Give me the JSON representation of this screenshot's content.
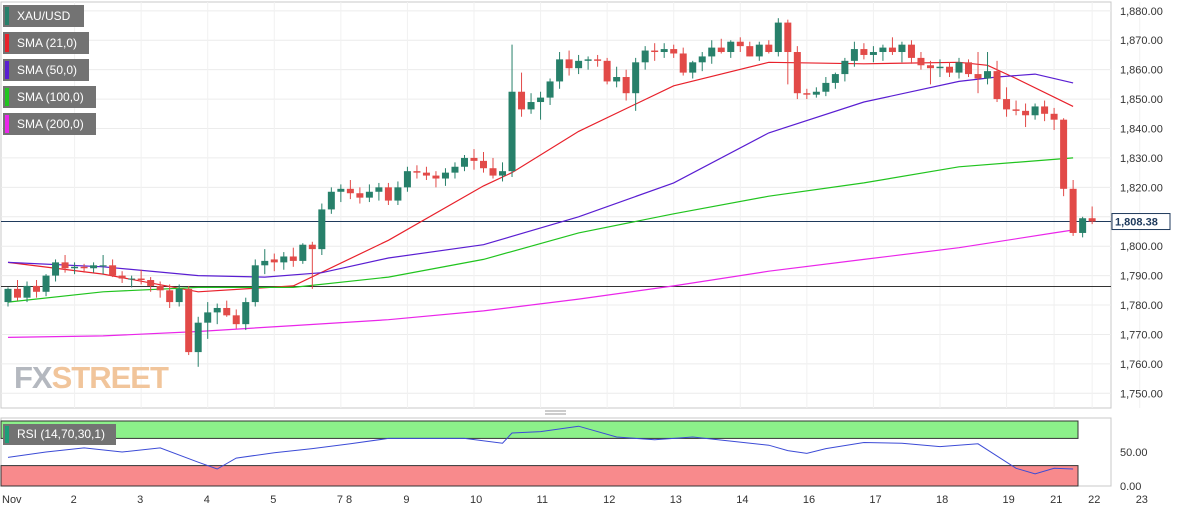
{
  "legend": [
    {
      "label": "XAU/USD",
      "color": "#26806a"
    },
    {
      "label": "SMA (21,0)",
      "color": "#e8212b"
    },
    {
      "label": "SMA (50,0)",
      "color": "#5a1ed2"
    },
    {
      "label": "SMA (100,0)",
      "color": "#21c41f"
    },
    {
      "label": "SMA (200,0)",
      "color": "#ea26ea"
    }
  ],
  "watermark": {
    "fx": "FX",
    "street": "STREET"
  },
  "rsi_label": "RSI (14,70,30,1)",
  "colors": {
    "up": "#27806a",
    "down": "#e24a48",
    "rsi_line": "#3c4bd6",
    "overbought": "#8cf08a",
    "oversold": "#f88a8c"
  },
  "chart_data": {
    "type": "candlestick",
    "symbol": "XAU/USD",
    "x_labels": [
      "Nov",
      "2",
      "3",
      "4",
      "5",
      "7 8",
      "9",
      "10",
      "11",
      "12",
      "13",
      "14",
      "16",
      "17",
      "18",
      "19",
      "21",
      "22",
      "23"
    ],
    "y_range": [
      1745,
      1883
    ],
    "y_ticks": [
      "1,750.00",
      "1,760.00",
      "1,770.00",
      "1,780.00",
      "1,790.00",
      "1,800.00",
      "1,810.00",
      "1,820.00",
      "1,830.00",
      "1,840.00",
      "1,850.00",
      "1,860.00",
      "1,870.00",
      "1,880.00"
    ],
    "last_price": 1808.38,
    "last_price_label": "1,808.38",
    "horizontal_line": 1786.3,
    "candles": [
      [
        1781.0,
        1786.0,
        1779.5,
        1785.5
      ],
      [
        1785.5,
        1788.5,
        1781.5,
        1782.5
      ],
      [
        1782.5,
        1788.0,
        1781.0,
        1786.5
      ],
      [
        1786.5,
        1788.5,
        1782.5,
        1784.5
      ],
      [
        1784.5,
        1790.5,
        1783.0,
        1790.0
      ],
      [
        1790.0,
        1795.5,
        1788.0,
        1794.5
      ],
      [
        1794.5,
        1797.0,
        1791.0,
        1792.5
      ],
      [
        1792.5,
        1794.5,
        1790.5,
        1793.0
      ],
      [
        1793.0,
        1794.0,
        1791.0,
        1792.5
      ],
      [
        1792.5,
        1794.5,
        1791.0,
        1793.5
      ],
      [
        1793.5,
        1797.0,
        1790.5,
        1793.5
      ],
      [
        1793.5,
        1795.5,
        1789.5,
        1790.0
      ],
      [
        1790.0,
        1791.5,
        1787.5,
        1789.0
      ],
      [
        1789.0,
        1790.0,
        1786.0,
        1789.0
      ],
      [
        1789.0,
        1792.0,
        1787.0,
        1788.5
      ],
      [
        1788.5,
        1789.5,
        1784.5,
        1786.5
      ],
      [
        1786.5,
        1788.0,
        1782.5,
        1785.0
      ],
      [
        1785.0,
        1787.0,
        1779.0,
        1781.0
      ],
      [
        1781.0,
        1787.0,
        1779.5,
        1785.5
      ],
      [
        1785.5,
        1786.5,
        1763.0,
        1764.0
      ],
      [
        1764.0,
        1776.0,
        1759.0,
        1774.0
      ],
      [
        1774.0,
        1781.0,
        1768.5,
        1777.5
      ],
      [
        1777.5,
        1780.5,
        1773.5,
        1779.0
      ],
      [
        1779.0,
        1781.5,
        1776.0,
        1776.5
      ],
      [
        1776.5,
        1778.5,
        1772.0,
        1773.5
      ],
      [
        1773.5,
        1782.5,
        1771.5,
        1781.0
      ],
      [
        1781.0,
        1795.5,
        1779.5,
        1793.5
      ],
      [
        1793.5,
        1799.0,
        1790.5,
        1795.0
      ],
      [
        1795.5,
        1797.5,
        1791.5,
        1794.5
      ],
      [
        1794.5,
        1798.0,
        1792.0,
        1796.5
      ],
      [
        1796.5,
        1799.5,
        1793.0,
        1795.0
      ],
      [
        1795.0,
        1801.0,
        1794.0,
        1800.5
      ],
      [
        1800.5,
        1801.5,
        1785.5,
        1799.0
      ],
      [
        1799.0,
        1814.5,
        1797.0,
        1812.5
      ],
      [
        1812.5,
        1820.0,
        1811.0,
        1818.5
      ],
      [
        1818.5,
        1821.0,
        1815.0,
        1819.5
      ],
      [
        1819.5,
        1822.5,
        1816.0,
        1818.0
      ],
      [
        1818.0,
        1820.0,
        1814.5,
        1816.5
      ],
      [
        1816.5,
        1821.0,
        1815.0,
        1818.5
      ],
      [
        1818.5,
        1821.5,
        1815.5,
        1820.0
      ],
      [
        1820.0,
        1821.5,
        1814.0,
        1815.5
      ],
      [
        1815.5,
        1822.0,
        1814.0,
        1820.0
      ],
      [
        1820.0,
        1827.0,
        1818.5,
        1825.5
      ],
      [
        1825.5,
        1827.5,
        1823.0,
        1825.0
      ],
      [
        1825.0,
        1827.0,
        1822.5,
        1824.0
      ],
      [
        1824.0,
        1825.5,
        1820.0,
        1823.0
      ],
      [
        1823.0,
        1826.5,
        1820.5,
        1825.0
      ],
      [
        1825.0,
        1828.5,
        1823.0,
        1827.0
      ],
      [
        1827.0,
        1831.0,
        1825.5,
        1830.0
      ],
      [
        1830.0,
        1833.0,
        1826.0,
        1829.0
      ],
      [
        1829.0,
        1832.0,
        1825.0,
        1826.5
      ],
      [
        1826.5,
        1830.0,
        1823.0,
        1824.0
      ],
      [
        1824.0,
        1828.5,
        1822.0,
        1825.5
      ],
      [
        1825.5,
        1868.5,
        1823.5,
        1852.5
      ],
      [
        1852.5,
        1859.0,
        1844.0,
        1846.5
      ],
      [
        1846.5,
        1852.0,
        1845.0,
        1849.0
      ],
      [
        1849.0,
        1852.5,
        1843.0,
        1850.5
      ],
      [
        1850.5,
        1857.0,
        1848.0,
        1856.0
      ],
      [
        1856.0,
        1866.0,
        1853.5,
        1863.5
      ],
      [
        1863.5,
        1866.5,
        1858.0,
        1860.5
      ],
      [
        1860.5,
        1865.0,
        1858.5,
        1863.0
      ],
      [
        1863.0,
        1864.5,
        1860.0,
        1863.5
      ],
      [
        1863.5,
        1865.0,
        1861.0,
        1863.0
      ],
      [
        1863.0,
        1864.0,
        1855.0,
        1856.0
      ],
      [
        1856.0,
        1861.0,
        1854.0,
        1857.5
      ],
      [
        1857.5,
        1860.0,
        1849.5,
        1852.0
      ],
      [
        1852.0,
        1864.0,
        1846.0,
        1862.5
      ],
      [
        1862.5,
        1868.0,
        1860.0,
        1866.5
      ],
      [
        1866.5,
        1869.0,
        1863.0,
        1866.0
      ],
      [
        1866.0,
        1869.0,
        1864.0,
        1867.0
      ],
      [
        1867.0,
        1868.5,
        1864.0,
        1865.5
      ],
      [
        1865.5,
        1867.5,
        1858.0,
        1859.0
      ],
      [
        1859.0,
        1863.0,
        1857.0,
        1862.5
      ],
      [
        1862.5,
        1866.0,
        1859.5,
        1864.5
      ],
      [
        1864.5,
        1870.0,
        1862.0,
        1867.5
      ],
      [
        1867.5,
        1870.5,
        1865.5,
        1866.0
      ],
      [
        1866.0,
        1870.0,
        1864.0,
        1869.5
      ],
      [
        1869.5,
        1871.0,
        1866.0,
        1868.0
      ],
      [
        1868.0,
        1869.5,
        1864.5,
        1864.5
      ],
      [
        1864.5,
        1869.5,
        1863.0,
        1868.5
      ],
      [
        1868.5,
        1870.0,
        1865.5,
        1866.0
      ],
      [
        1866.0,
        1877.5,
        1864.5,
        1876.0
      ],
      [
        1876.0,
        1877.0,
        1855.0,
        1866.0
      ],
      [
        1866.0,
        1868.0,
        1850.0,
        1852.0
      ],
      [
        1852.0,
        1853.5,
        1850.0,
        1851.5
      ],
      [
        1851.5,
        1854.0,
        1850.5,
        1852.5
      ],
      [
        1852.5,
        1857.5,
        1851.0,
        1855.5
      ],
      [
        1855.5,
        1859.0,
        1853.5,
        1858.5
      ],
      [
        1858.5,
        1864.0,
        1856.0,
        1863.0
      ],
      [
        1863.0,
        1869.5,
        1861.0,
        1867.0
      ],
      [
        1867.0,
        1869.0,
        1863.5,
        1865.0
      ],
      [
        1865.0,
        1868.0,
        1862.5,
        1866.0
      ],
      [
        1866.0,
        1868.5,
        1863.0,
        1867.5
      ],
      [
        1867.5,
        1871.0,
        1865.0,
        1866.0
      ],
      [
        1866.0,
        1869.5,
        1862.5,
        1868.5
      ],
      [
        1868.5,
        1870.0,
        1862.0,
        1864.0
      ],
      [
        1864.0,
        1866.0,
        1860.0,
        1861.5
      ],
      [
        1861.5,
        1863.0,
        1855.0,
        1860.5
      ],
      [
        1860.5,
        1863.5,
        1857.5,
        1861.0
      ],
      [
        1861.0,
        1862.5,
        1857.5,
        1859.0
      ],
      [
        1859.0,
        1864.0,
        1857.0,
        1862.5
      ],
      [
        1862.5,
        1863.5,
        1857.5,
        1858.5
      ],
      [
        1858.5,
        1866.0,
        1852.0,
        1857.0
      ],
      [
        1857.0,
        1866.0,
        1855.0,
        1859.5
      ],
      [
        1859.5,
        1863.0,
        1849.0,
        1850.0
      ],
      [
        1850.0,
        1854.0,
        1844.0,
        1846.5
      ],
      [
        1846.5,
        1849.5,
        1844.5,
        1846.0
      ],
      [
        1846.0,
        1848.5,
        1840.5,
        1844.5
      ],
      [
        1844.5,
        1848.5,
        1843.0,
        1847.5
      ],
      [
        1847.5,
        1849.5,
        1842.5,
        1845.0
      ],
      [
        1845.0,
        1847.0,
        1839.5,
        1843.0
      ],
      [
        1843.0,
        1843.5,
        1817.0,
        1819.5
      ],
      [
        1819.5,
        1822.5,
        1803.5,
        1804.5
      ],
      [
        1804.5,
        1810.0,
        1803.0,
        1809.5
      ],
      [
        1809.5,
        1813.5,
        1807.5,
        1808.4
      ]
    ],
    "series": [
      {
        "name": "SMA (21,0)",
        "color": "#e8212b",
        "x": [
          0,
          10,
          20,
          30,
          40,
          50,
          53,
          60,
          70,
          80,
          90,
          100,
          103,
          106,
          112
        ],
        "y": [
          1794.5,
          1790.5,
          1784.5,
          1786.5,
          1802.0,
          1820.5,
          1825.0,
          1839.0,
          1854.5,
          1862.5,
          1862.0,
          1862.5,
          1861.5,
          1857.0,
          1847.5
        ]
      },
      {
        "name": "SMA (50,0)",
        "color": "#5a1ed2",
        "x": [
          0,
          10,
          20,
          27,
          33,
          40,
          50,
          60,
          70,
          80,
          90,
          100,
          104,
          108,
          112
        ],
        "y": [
          1794.5,
          1793.0,
          1790.0,
          1789.5,
          1791.0,
          1796.0,
          1800.5,
          1810.0,
          1821.5,
          1838.5,
          1849.0,
          1856.0,
          1857.5,
          1858.5,
          1855.5
        ]
      },
      {
        "name": "SMA (100,0)",
        "color": "#21c41f",
        "x": [
          0,
          10,
          20,
          30,
          40,
          50,
          60,
          70,
          80,
          90,
          100,
          112
        ],
        "y": [
          1781.0,
          1784.5,
          1786.0,
          1786.0,
          1789.5,
          1795.5,
          1804.5,
          1811.0,
          1817.0,
          1821.5,
          1827.0,
          1830.0
        ]
      },
      {
        "name": "SMA (200,0)",
        "color": "#ea26ea",
        "x": [
          0,
          10,
          20,
          30,
          40,
          50,
          60,
          70,
          80,
          90,
          100,
          110,
          112
        ],
        "y": [
          1769.0,
          1769.5,
          1771.0,
          1773.0,
          1775.0,
          1778.0,
          1782.0,
          1786.5,
          1791.5,
          1795.5,
          1799.5,
          1804.5,
          1805.5
        ]
      }
    ],
    "rsi": {
      "label": "RSI (14,70,30,1)",
      "ticks": [
        "50.00",
        "0.00"
      ],
      "levels": [
        70,
        30
      ],
      "x": [
        0,
        4,
        8,
        12,
        16,
        20,
        22,
        24,
        28,
        32,
        36,
        40,
        44,
        48,
        52,
        53,
        56,
        60,
        64,
        68,
        72,
        76,
        80,
        82,
        84,
        86,
        90,
        94,
        98,
        102,
        106,
        108,
        110,
        112
      ],
      "y": [
        42,
        50,
        56,
        50,
        56,
        35,
        25,
        41,
        49,
        55,
        62,
        70,
        70,
        70,
        63,
        78,
        80,
        88,
        72,
        68,
        72,
        66,
        60,
        52,
        48,
        55,
        64,
        63,
        58,
        62,
        26,
        18,
        26,
        25
      ]
    }
  }
}
